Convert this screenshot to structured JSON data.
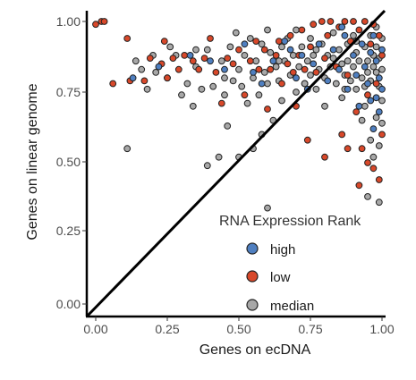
{
  "chart_data": {
    "type": "scatter",
    "xlabel": "Genes on ecDNA",
    "ylabel": "Genes on linear genome",
    "xlim": [
      0,
      1
    ],
    "ylim": [
      0,
      1
    ],
    "x_ticks": [
      "0.00",
      "0.25",
      "0.50",
      "0.75",
      "1.00"
    ],
    "y_ticks": [
      "0.00",
      "0.25",
      "0.50",
      "0.75",
      "1.00"
    ],
    "grid": false,
    "reference_line": "y = x",
    "legend": {
      "title": "RNA Expression Rank",
      "placement": "bottom-right",
      "entries": [
        "high",
        "low",
        "median"
      ]
    },
    "colors": {
      "high": "#4f7fc0",
      "low": "#d8482a",
      "median": "#a8a8a8",
      "outline": "#222222"
    },
    "series": [
      {
        "name": "high",
        "points": [
          [
            0.13,
            0.8
          ],
          [
            0.22,
            0.84
          ],
          [
            0.33,
            0.88
          ],
          [
            0.45,
            0.83
          ],
          [
            0.52,
            0.92
          ],
          [
            0.58,
            0.78
          ],
          [
            0.62,
            0.86
          ],
          [
            0.66,
            0.93
          ],
          [
            0.7,
            0.8
          ],
          [
            0.72,
            0.88
          ],
          [
            0.76,
            0.85
          ],
          [
            0.78,
            0.92
          ],
          [
            0.81,
            0.79
          ],
          [
            0.83,
            0.9
          ],
          [
            0.85,
            0.83
          ],
          [
            0.87,
            0.95
          ],
          [
            0.88,
            0.76
          ],
          [
            0.9,
            0.88
          ],
          [
            0.91,
            0.81
          ],
          [
            0.92,
            0.7
          ],
          [
            0.93,
            0.92
          ],
          [
            0.94,
            0.84
          ],
          [
            0.95,
            0.78
          ],
          [
            0.96,
            0.89
          ],
          [
            0.97,
            0.62
          ],
          [
            0.97,
            0.95
          ],
          [
            0.98,
            0.73
          ],
          [
            0.98,
            0.86
          ],
          [
            0.99,
            0.8
          ],
          [
            0.99,
            0.68
          ],
          [
            1.0,
            0.9
          ],
          [
            1.0,
            0.76
          ],
          [
            0.4,
            0.86
          ],
          [
            0.55,
            0.82
          ],
          [
            0.68,
            0.9
          ],
          [
            0.74,
            0.76
          ],
          [
            0.86,
            0.98
          ],
          [
            0.96,
            0.72
          ]
        ]
      },
      {
        "name": "low",
        "points": [
          [
            0.0,
            0.99
          ],
          [
            0.02,
            1.0
          ],
          [
            0.03,
            1.0
          ],
          [
            0.06,
            0.78
          ],
          [
            0.11,
            0.94
          ],
          [
            0.12,
            0.79
          ],
          [
            0.17,
            0.79
          ],
          [
            0.19,
            0.87
          ],
          [
            0.23,
            0.85
          ],
          [
            0.24,
            0.93
          ],
          [
            0.27,
            0.87
          ],
          [
            0.29,
            0.83
          ],
          [
            0.31,
            0.88
          ],
          [
            0.34,
            0.86
          ],
          [
            0.36,
            0.83
          ],
          [
            0.38,
            0.87
          ],
          [
            0.4,
            0.94
          ],
          [
            0.42,
            0.82
          ],
          [
            0.44,
            0.71
          ],
          [
            0.46,
            0.87
          ],
          [
            0.48,
            0.85
          ],
          [
            0.5,
            0.9
          ],
          [
            0.52,
            0.74
          ],
          [
            0.54,
            0.86
          ],
          [
            0.56,
            0.93
          ],
          [
            0.57,
            0.83
          ],
          [
            0.59,
            0.9
          ],
          [
            0.6,
            0.69
          ],
          [
            0.61,
            0.83
          ],
          [
            0.63,
            0.88
          ],
          [
            0.64,
            0.93
          ],
          [
            0.65,
            0.78
          ],
          [
            0.67,
            0.85
          ],
          [
            0.68,
            0.95
          ],
          [
            0.69,
            0.82
          ],
          [
            0.71,
            0.88
          ],
          [
            0.72,
            0.97
          ],
          [
            0.73,
            0.83
          ],
          [
            0.74,
            0.58
          ],
          [
            0.75,
            0.91
          ],
          [
            0.76,
            0.99
          ],
          [
            0.77,
            0.82
          ],
          [
            0.79,
            1.0
          ],
          [
            0.8,
            0.87
          ],
          [
            0.81,
            0.95
          ],
          [
            0.82,
            1.0
          ],
          [
            0.84,
            0.84
          ],
          [
            0.85,
            0.98
          ],
          [
            0.86,
            0.6
          ],
          [
            0.87,
            1.0
          ],
          [
            0.88,
            0.81
          ],
          [
            0.89,
            0.93
          ],
          [
            0.9,
            1.0
          ],
          [
            0.91,
            0.68
          ],
          [
            0.92,
            0.97
          ],
          [
            0.93,
            0.55
          ],
          [
            0.94,
            1.0
          ],
          [
            0.95,
            0.74
          ],
          [
            0.95,
            0.5
          ],
          [
            0.96,
            0.92
          ],
          [
            0.97,
            0.48
          ],
          [
            0.97,
            0.99
          ],
          [
            0.98,
            0.78
          ],
          [
            0.99,
            0.95
          ],
          [
            0.99,
            0.44
          ],
          [
            1.0,
            0.88
          ],
          [
            1.0,
            0.6
          ],
          [
            0.8,
            0.52
          ],
          [
            0.88,
            0.55
          ],
          [
            0.92,
            0.42
          ],
          [
            0.25,
            0.8
          ],
          [
            0.7,
            0.7
          ]
        ]
      },
      {
        "name": "median",
        "points": [
          [
            0.11,
            0.55
          ],
          [
            0.14,
            0.86
          ],
          [
            0.16,
            0.83
          ],
          [
            0.18,
            0.76
          ],
          [
            0.2,
            0.88
          ],
          [
            0.21,
            0.82
          ],
          [
            0.25,
            0.8
          ],
          [
            0.26,
            0.91
          ],
          [
            0.28,
            0.88
          ],
          [
            0.3,
            0.74
          ],
          [
            0.32,
            0.78
          ],
          [
            0.34,
            0.7
          ],
          [
            0.35,
            0.84
          ],
          [
            0.37,
            0.76
          ],
          [
            0.39,
            0.9
          ],
          [
            0.39,
            0.49
          ],
          [
            0.41,
            0.77
          ],
          [
            0.43,
            0.52
          ],
          [
            0.44,
            0.86
          ],
          [
            0.45,
            0.74
          ],
          [
            0.46,
            0.63
          ],
          [
            0.47,
            0.91
          ],
          [
            0.48,
            0.79
          ],
          [
            0.49,
            0.96
          ],
          [
            0.5,
            0.83
          ],
          [
            0.5,
            0.52
          ],
          [
            0.51,
            0.77
          ],
          [
            0.52,
            0.88
          ],
          [
            0.53,
            0.71
          ],
          [
            0.54,
            0.94
          ],
          [
            0.55,
            0.8
          ],
          [
            0.55,
            0.55
          ],
          [
            0.56,
            0.86
          ],
          [
            0.57,
            0.74
          ],
          [
            0.58,
            0.92
          ],
          [
            0.59,
            0.82
          ],
          [
            0.6,
            0.97
          ],
          [
            0.6,
            0.78
          ],
          [
            0.61,
            0.89
          ],
          [
            0.62,
            0.65
          ],
          [
            0.63,
            0.84
          ],
          [
            0.64,
            0.79
          ],
          [
            0.65,
            0.91
          ],
          [
            0.65,
            0.72
          ],
          [
            0.66,
            0.86
          ],
          [
            0.67,
            0.94
          ],
          [
            0.68,
            0.81
          ],
          [
            0.69,
            0.88
          ],
          [
            0.7,
            0.75
          ],
          [
            0.7,
            0.97
          ],
          [
            0.71,
            0.84
          ],
          [
            0.72,
            0.91
          ],
          [
            0.73,
            0.78
          ],
          [
            0.74,
            0.86
          ],
          [
            0.75,
            0.94
          ],
          [
            0.75,
            0.81
          ],
          [
            0.76,
            0.88
          ],
          [
            0.77,
            0.76
          ],
          [
            0.78,
            0.83
          ],
          [
            0.79,
            0.92
          ],
          [
            0.8,
            0.8
          ],
          [
            0.8,
            0.7
          ],
          [
            0.81,
            0.88
          ],
          [
            0.82,
            0.84
          ],
          [
            0.83,
            0.96
          ],
          [
            0.84,
            0.78
          ],
          [
            0.85,
            0.9
          ],
          [
            0.86,
            0.85
          ],
          [
            0.86,
            0.73
          ],
          [
            0.87,
            0.81
          ],
          [
            0.88,
            0.92
          ],
          [
            0.88,
            0.86
          ],
          [
            0.89,
            0.79
          ],
          [
            0.9,
            0.84
          ],
          [
            0.9,
            0.95
          ],
          [
            0.91,
            0.89
          ],
          [
            0.91,
            0.76
          ],
          [
            0.92,
            0.86
          ],
          [
            0.93,
            0.8
          ],
          [
            0.93,
            0.65
          ],
          [
            0.94,
            0.91
          ],
          [
            0.94,
            0.77
          ],
          [
            0.95,
            0.86
          ],
          [
            0.95,
            0.82
          ],
          [
            0.96,
            0.95
          ],
          [
            0.96,
            0.79
          ],
          [
            0.96,
            0.58
          ],
          [
            0.97,
            0.88
          ],
          [
            0.97,
            0.84
          ],
          [
            0.97,
            0.52
          ],
          [
            0.98,
            0.91
          ],
          [
            0.98,
            0.82
          ],
          [
            0.98,
            0.66
          ],
          [
            0.99,
            0.87
          ],
          [
            0.99,
            0.77
          ],
          [
            0.99,
            0.56
          ],
          [
            1.0,
            0.94
          ],
          [
            1.0,
            0.83
          ],
          [
            1.0,
            0.72
          ],
          [
            1.0,
            0.64
          ],
          [
            0.95,
            0.38
          ],
          [
            0.99,
            0.36
          ],
          [
            0.6,
            0.34
          ],
          [
            0.73,
            0.78
          ],
          [
            0.83,
            0.87
          ],
          [
            0.91,
            0.93
          ],
          [
            0.94,
            0.7
          ],
          [
            0.45,
            0.8
          ],
          [
            0.35,
            0.9
          ],
          [
            0.58,
            0.6
          ],
          [
            0.64,
            0.86
          ],
          [
            0.77,
            0.9
          ],
          [
            0.87,
            0.76
          ],
          [
            0.98,
            0.98
          ]
        ]
      }
    ]
  }
}
